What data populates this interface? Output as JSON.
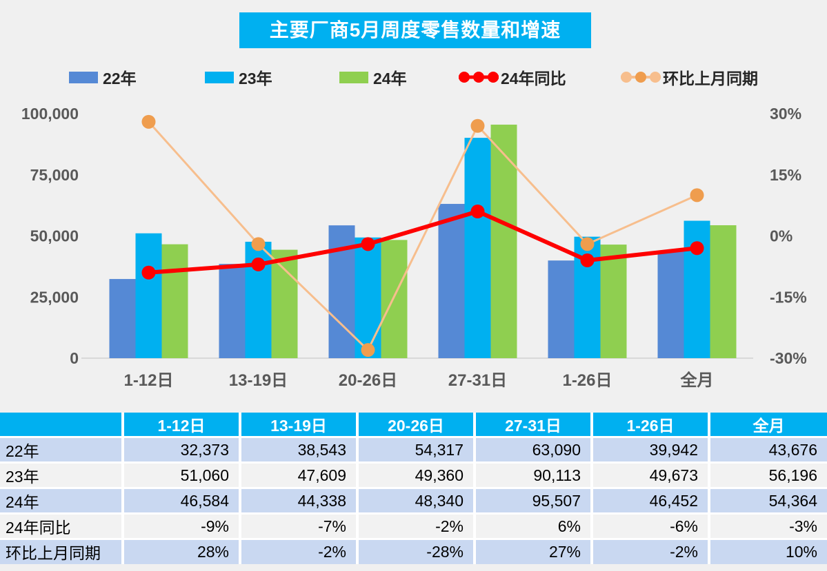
{
  "title": "主要厂商5月周度零售数量和增速",
  "colors": {
    "accent_cyan": "#00B0F0",
    "bar_22": "#5589D5",
    "bar_23": "#00B0F0",
    "bar_24": "#8FCF50",
    "line_yoy": "#FE0000",
    "line_mom": "#F7BE8D",
    "line_mom_marker": "#EF9D4E",
    "axis_text": "#595959",
    "baseline": "#D9D9D9",
    "table_row_blue": "#C9D8F1",
    "table_row_gray": "#F2F2F2",
    "background": "#F0F0F0"
  },
  "legend": {
    "items": [
      {
        "label": "22年",
        "type": "bar",
        "color": "#5589D5",
        "marker_color": "#5589D5"
      },
      {
        "label": "23年",
        "type": "bar",
        "color": "#00B0F0",
        "marker_color": "#00B0F0"
      },
      {
        "label": "24年",
        "type": "bar",
        "color": "#8FCF50",
        "marker_color": "#8FCF50"
      },
      {
        "label": "24年同比",
        "type": "line",
        "color": "#FE0000",
        "marker_color": "#FE0000"
      },
      {
        "label": "环比上月同期",
        "type": "line",
        "color": "#F7BE8D",
        "marker_color": "#EF9D4E"
      }
    ]
  },
  "chart_data": {
    "type": "bar+line",
    "title": "主要厂商5月周度零售数量和增速",
    "categories": [
      "1-12日",
      "13-19日",
      "20-26日",
      "27-31日",
      "1-26日",
      "全月"
    ],
    "series": [
      {
        "name": "22年",
        "type": "bar",
        "axis": "left",
        "color": "#5589D5",
        "values": [
          32373,
          38543,
          54317,
          63090,
          39942,
          43676
        ]
      },
      {
        "name": "23年",
        "type": "bar",
        "axis": "left",
        "color": "#00B0F0",
        "values": [
          51060,
          47609,
          49360,
          90113,
          49673,
          56196
        ]
      },
      {
        "name": "24年",
        "type": "bar",
        "axis": "left",
        "color": "#8FCF50",
        "values": [
          46584,
          44338,
          48340,
          95507,
          46452,
          54364
        ]
      },
      {
        "name": "24年同比",
        "type": "line",
        "axis": "right",
        "color": "#FE0000",
        "marker_color": "#FE0000",
        "values": [
          -9,
          -7,
          -2,
          6,
          -6,
          -3
        ]
      },
      {
        "name": "环比上月同期",
        "type": "line",
        "axis": "right",
        "color": "#F7BE8D",
        "marker_color": "#EF9D4E",
        "values": [
          28,
          -2,
          -28,
          27,
          -2,
          10
        ]
      }
    ],
    "left_axis": {
      "min": 0,
      "max": 100000,
      "ticks": [
        "0",
        "25,000",
        "50,000",
        "75,000",
        "100,000"
      ]
    },
    "right_axis": {
      "min": -30,
      "max": 30,
      "ticks": [
        "-30%",
        "-15%",
        "0%",
        "15%",
        "30%"
      ]
    },
    "grid": false,
    "legend_position": "top"
  },
  "table": {
    "corner": "",
    "columns": [
      "1-12日",
      "13-19日",
      "20-26日",
      "27-31日",
      "1-26日",
      "全月"
    ],
    "rows": [
      {
        "label": "22年",
        "cells": [
          "32,373",
          "38,543",
          "54,317",
          "63,090",
          "39,942",
          "43,676"
        ]
      },
      {
        "label": "23年",
        "cells": [
          "51,060",
          "47,609",
          "49,360",
          "90,113",
          "49,673",
          "56,196"
        ]
      },
      {
        "label": "24年",
        "cells": [
          "46,584",
          "44,338",
          "48,340",
          "95,507",
          "46,452",
          "54,364"
        ]
      },
      {
        "label": "24年同比",
        "cells": [
          "-9%",
          "-7%",
          "-2%",
          "6%",
          "-6%",
          "-3%"
        ]
      },
      {
        "label": "环比上月同期",
        "cells": [
          "28%",
          "-2%",
          "-28%",
          "27%",
          "-2%",
          "10%"
        ]
      }
    ]
  }
}
